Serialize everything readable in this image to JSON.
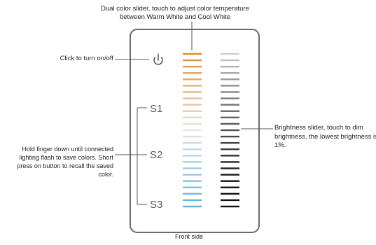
{
  "caption_top": "Dual color slider, touch to adjust color temperature between Warm White and Cool White",
  "caption_onoff": "Click to turn on/off",
  "caption_hold": "Hold finger down until connected lighting flash to save colors. Short press on button to recall the saved color.",
  "caption_brightness": "Brightness slider, touch to dim brightness, the lowest brightness is 1%.",
  "caption_front": "Front side",
  "scenes": [
    "S1",
    "S2",
    "S3"
  ],
  "icons": {
    "power": "power-icon"
  },
  "colors": {
    "warm": "#e08a2c",
    "cool": "#5ab4dc",
    "bright_dark": "#111111",
    "bright_light": "#cfcfcf",
    "panel_border": "#6b6b6b"
  },
  "slider_segments": 25
}
